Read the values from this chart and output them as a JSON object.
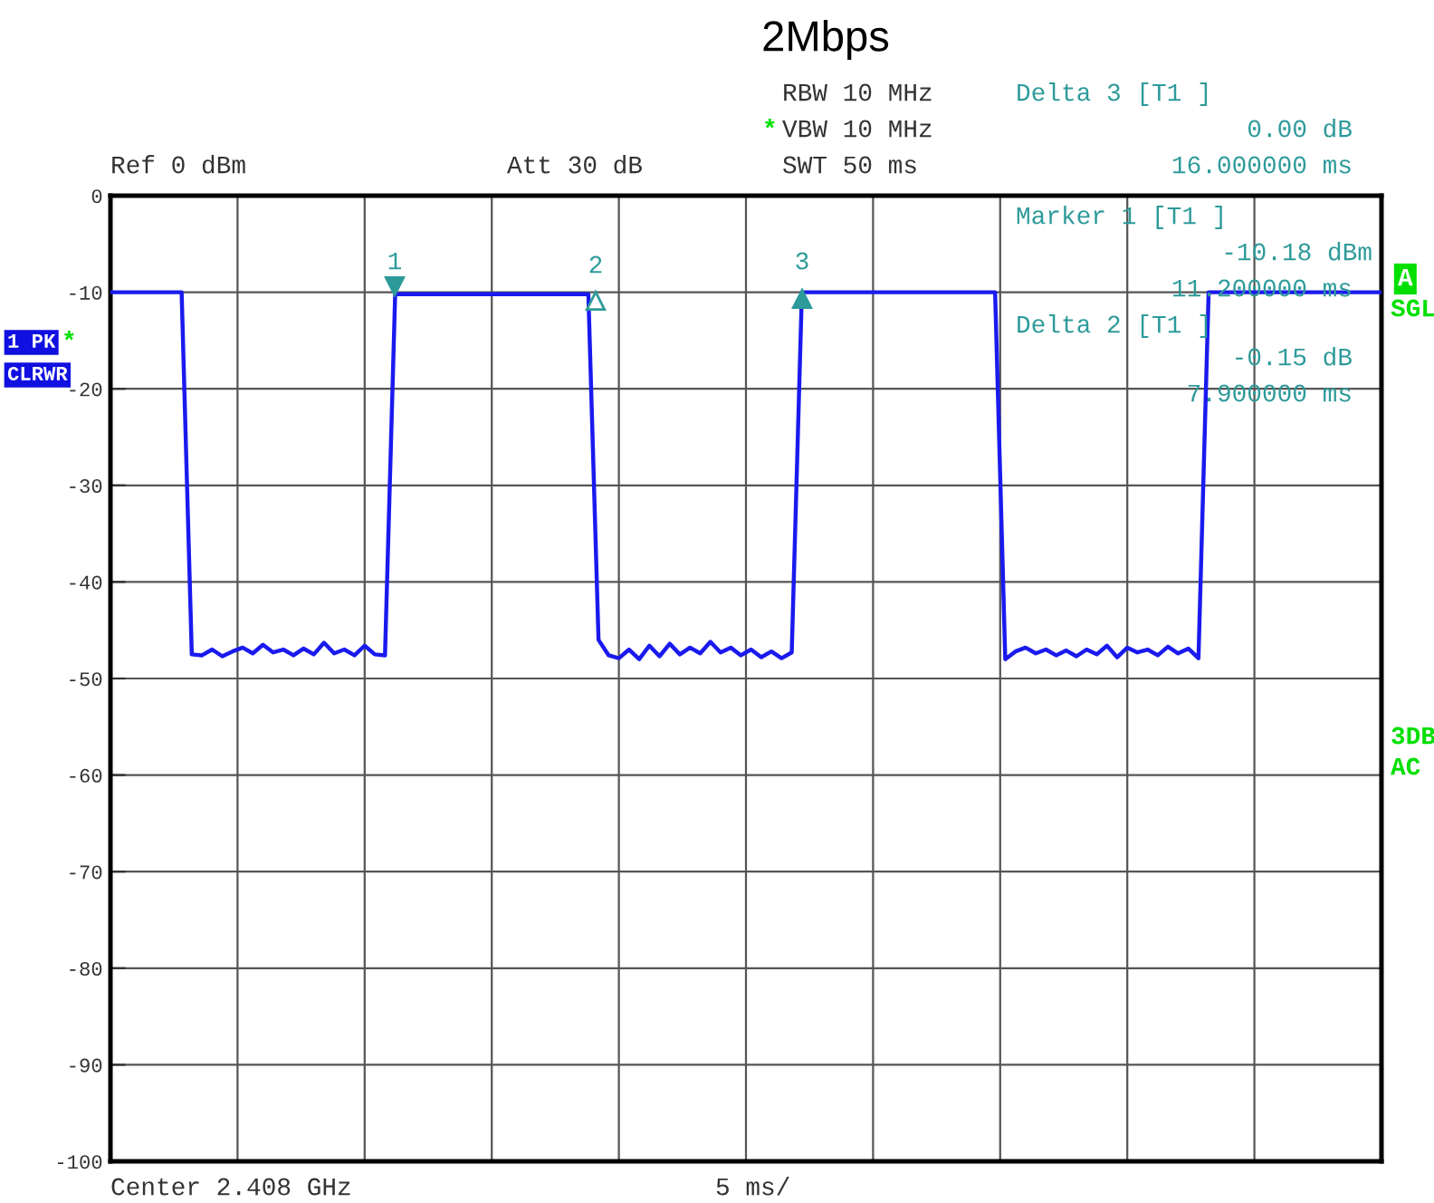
{
  "chart_data": {
    "type": "line",
    "title": "2Mbps",
    "categories": [
      null,
      null,
      null,
      null,
      null,
      null,
      null,
      null,
      null,
      null,
      null,
      null,
      null,
      null,
      null,
      null,
      null,
      null,
      null,
      null,
      null,
      null,
      null,
      null,
      null,
      null,
      null,
      null,
      null,
      null,
      null,
      null,
      null,
      null,
      null,
      null,
      null,
      null,
      null,
      null,
      null,
      null,
      null,
      null,
      null,
      null,
      null,
      null,
      null,
      null,
      null,
      null,
      null,
      null,
      null,
      null,
      null,
      null,
      null,
      null,
      null,
      null,
      null,
      null,
      null,
      null,
      null,
      null,
      null,
      null,
      null,
      null,
      null,
      null,
      null,
      null,
      null,
      null,
      null,
      null,
      null,
      null,
      null,
      null,
      null,
      null,
      null,
      null,
      null,
      null,
      null,
      null,
      null,
      null,
      null,
      null,
      null,
      null,
      null,
      null,
      null,
      null,
      null,
      null,
      null,
      null,
      null,
      null,
      null,
      null,
      null,
      null,
      null,
      null,
      null,
      null,
      null,
      null,
      null,
      null,
      null,
      null,
      null,
      null,
      null,
      null
    ],
    "series": [
      {
        "color": "#1a1aee",
        "values": [
          -10,
          -10,
          -10,
          -10,
          -10,
          -10,
          -10,
          -10,
          -47.5,
          -47.6,
          -47.0,
          -47.7,
          -47.2,
          -46.8,
          -47.4,
          -46.5,
          -47.3,
          -47.0,
          -47.6,
          -46.9,
          -47.5,
          -46.3,
          -47.4,
          -47.0,
          -47.6,
          -46.6,
          -47.5,
          -47.6,
          -10.2,
          -10.2,
          -10.2,
          -10.2,
          -10.2,
          -10.2,
          -10.2,
          -10.2,
          -10.2,
          -10.2,
          -10.2,
          -10.2,
          -10.2,
          -10.2,
          -10.2,
          -10.2,
          -10.2,
          -10.2,
          -10.2,
          -10.2,
          -46.0,
          -47.6,
          -47.9,
          -47.0,
          -48.0,
          -46.6,
          -47.7,
          -46.4,
          -47.5,
          -46.8,
          -47.4,
          -46.2,
          -47.3,
          -46.8,
          -47.6,
          -47.0,
          -47.8,
          -47.2,
          -47.9,
          -47.3,
          -10,
          -10,
          -10,
          -10,
          -10,
          -10,
          -10,
          -10,
          -10,
          -10,
          -10,
          -10,
          -10,
          -10,
          -10,
          -10,
          -10,
          -10,
          -10,
          -10,
          -48.0,
          -47.2,
          -46.8,
          -47.4,
          -47.0,
          -47.6,
          -47.1,
          -47.7,
          -47.0,
          -47.5,
          -46.6,
          -47.8,
          -46.8,
          -47.3,
          -47.0,
          -47.6,
          -46.7,
          -47.4,
          -46.9,
          -47.9,
          -10,
          -10,
          -10,
          -10,
          -10,
          -10,
          -10,
          -10,
          -10,
          -10,
          -10,
          -10,
          -10,
          -10,
          -10,
          -10,
          -10,
          -10
        ]
      }
    ],
    "ylim": [
      -100,
      0
    ],
    "yticks": [
      {
        "value": 0,
        "label": "0"
      },
      {
        "value": -10,
        "label": "-10"
      },
      {
        "value": -20,
        "label": "-20"
      },
      {
        "value": -30,
        "label": "-30"
      },
      {
        "value": -40,
        "label": "-40"
      },
      {
        "value": -50,
        "label": "-50"
      },
      {
        "value": -60,
        "label": "-60"
      },
      {
        "value": -70,
        "label": "-70"
      },
      {
        "value": -80,
        "label": "-80"
      },
      {
        "value": -90,
        "label": "-90"
      },
      {
        "value": -100,
        "label": "-100"
      }
    ],
    "grid": true,
    "marker": "none",
    "line_style": "solid",
    "annotations": [
      "1",
      "2",
      "3",
      "Ref 0 dBm",
      "Att 30 dB",
      "RBW 10 MHz",
      "*",
      "VBW 10 MHz",
      "SWT 50 ms",
      "Delta 3 [T1 ]",
      "0.00 dB",
      "16.000000 ms",
      "Marker 1 [T1 ]",
      "-10.18 dBm",
      "11.200000 ms",
      "Delta 2 [T1 ]",
      "-0.15 dB",
      "7.900000 ms",
      "1 PK",
      "*",
      "CLRWR",
      "A",
      "SGL",
      "3DB",
      "AC",
      "Center 2.408 GHz",
      "5 ms/"
    ]
  }
}
